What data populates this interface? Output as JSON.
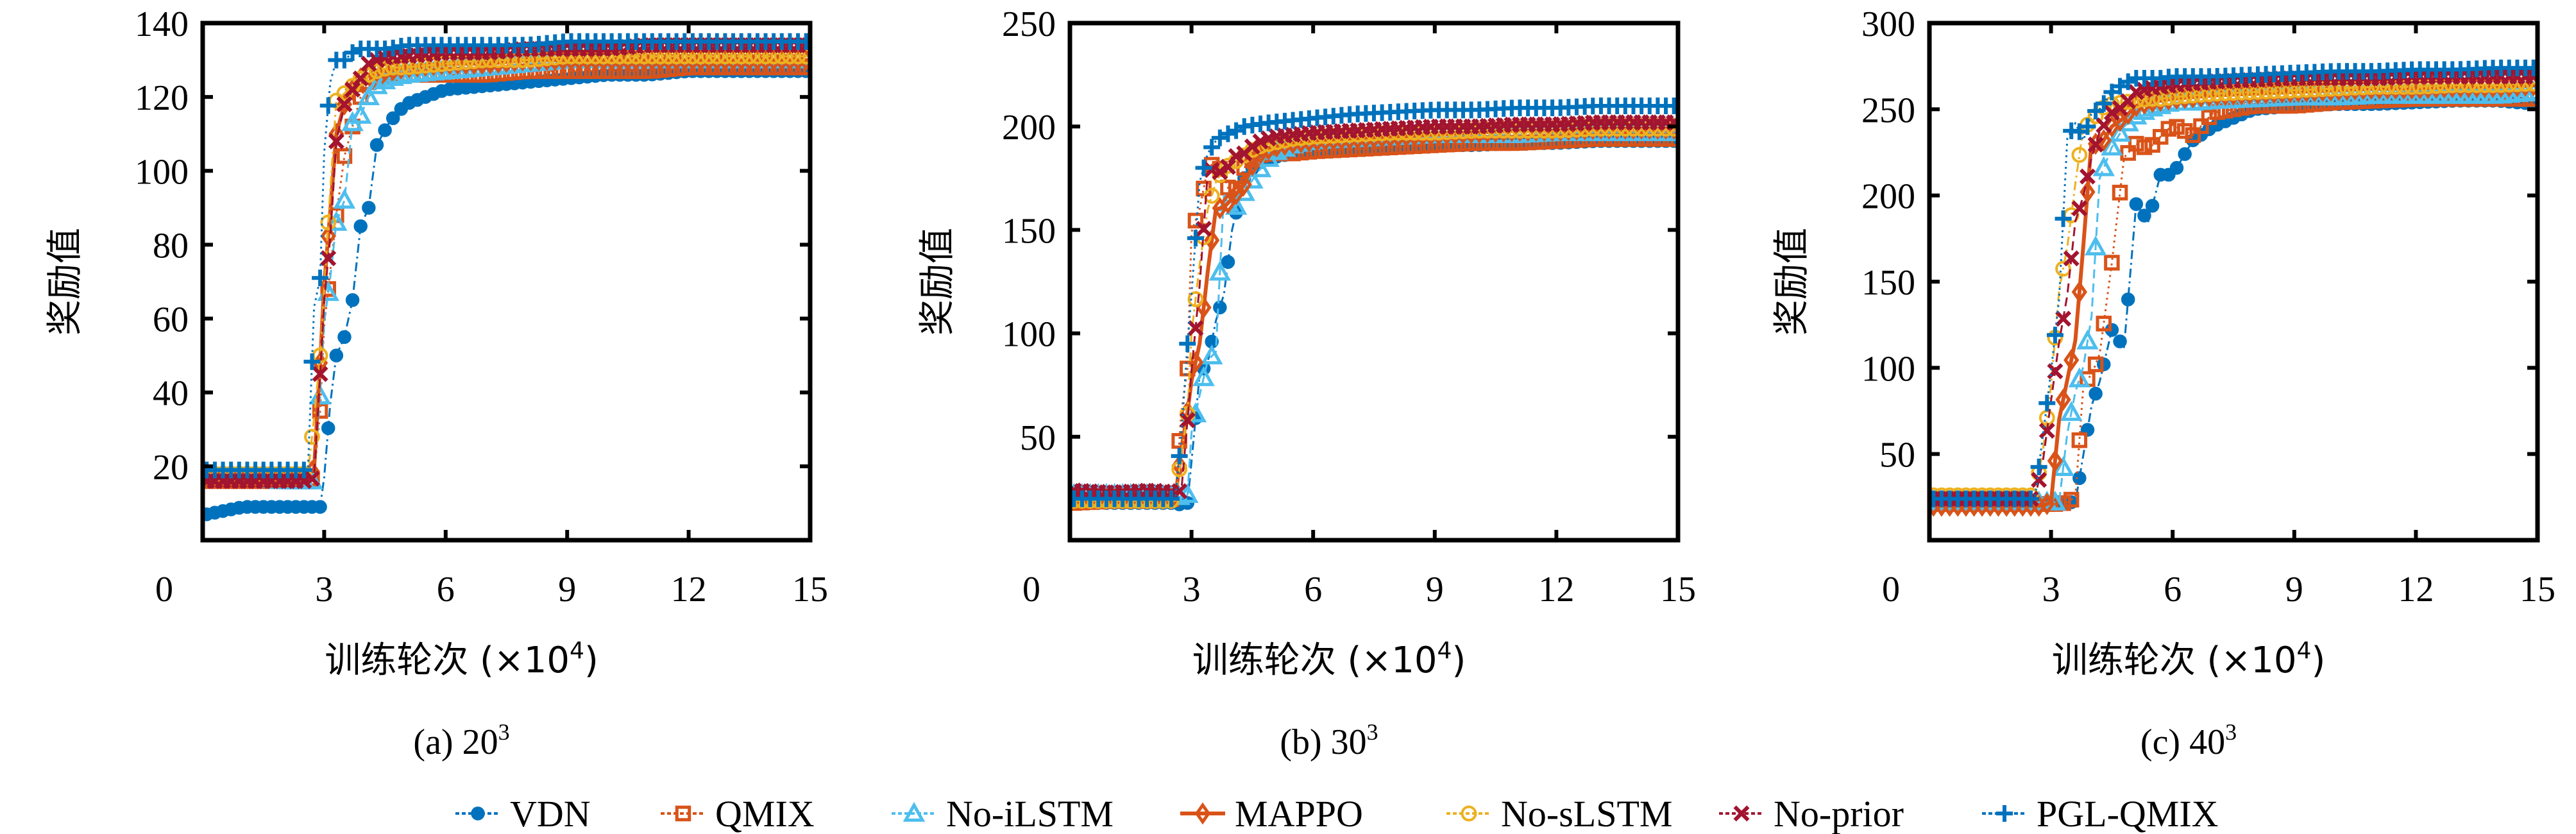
{
  "legend": [
    {
      "name": "VDN",
      "color": "#0072BD",
      "marker": "asterisk-dot",
      "dash": "dashdot"
    },
    {
      "name": "QMIX",
      "color": "#D95319",
      "marker": "square",
      "dash": "dotted"
    },
    {
      "name": "No-iLSTM",
      "color": "#4DBEEE",
      "marker": "triangle",
      "dash": "dashed"
    },
    {
      "name": "MAPPO",
      "color": "#D95319",
      "marker": "diamond",
      "dash": "solid"
    },
    {
      "name": "No-sLSTM",
      "color": "#EDB120",
      "marker": "circle",
      "dash": "dashdot"
    },
    {
      "name": "No-prior",
      "color": "#A2142F",
      "marker": "x-cross",
      "dash": "dashed"
    },
    {
      "name": "PGL-QMIX",
      "color": "#0072BD",
      "marker": "plus",
      "dash": "dotted"
    }
  ],
  "chart_data": [
    {
      "type": "line",
      "caption": "(a) 20",
      "caption_sup": "3",
      "xlabel": "训练轮次 (×10",
      "xlabel_sup": "4",
      "xlabel_end": ")",
      "ylabel": "奖励值",
      "xlim": [
        0,
        15
      ],
      "ylim": [
        0,
        140
      ],
      "xticks": [
        0,
        3,
        6,
        9,
        12,
        15
      ],
      "yticks": [
        20,
        40,
        60,
        80,
        100,
        120,
        140
      ],
      "grid": false,
      "x": [
        0.1,
        1,
        2,
        2.6,
        2.75,
        2.9,
        3.0,
        3.15,
        3.3,
        3.5,
        3.7,
        3.9,
        4.1,
        4.3,
        4.6,
        5,
        6,
        7,
        8,
        9,
        10,
        11,
        12,
        13,
        14,
        15
      ],
      "series": [
        {
          "name": "VDN",
          "values": [
            7,
            9,
            9,
            9,
            9,
            9,
            17,
            37,
            50,
            55,
            65,
            85,
            90,
            107,
            113,
            118,
            122,
            123,
            124,
            125,
            126,
            126,
            127,
            127,
            127,
            127
          ]
        },
        {
          "name": "QMIX",
          "values": [
            16,
            16,
            16,
            16,
            17,
            35,
            58,
            73,
            88,
            104,
            112,
            120,
            124,
            125,
            126,
            126,
            126,
            126,
            127,
            127,
            127,
            127,
            128,
            128,
            128,
            128
          ]
        },
        {
          "name": "No-iLSTM",
          "values": [
            17,
            17,
            16,
            16,
            16,
            39,
            59,
            71,
            86,
            92,
            113,
            115,
            120,
            123,
            125,
            126,
            127,
            128,
            129,
            130,
            130,
            130,
            130,
            130,
            130,
            130
          ]
        },
        {
          "name": "MAPPO",
          "values": [
            17,
            17,
            17,
            18,
            19,
            48,
            69,
            89,
            110,
            118,
            122,
            125,
            126,
            127,
            127,
            128,
            129,
            129,
            130,
            130,
            130,
            130,
            130,
            130,
            130,
            130
          ]
        },
        {
          "name": "No-sLSTM",
          "values": [
            18,
            18,
            18,
            18,
            33,
            50,
            68,
            95,
            119,
            121,
            123,
            125,
            126,
            127,
            128,
            128,
            129,
            130,
            130,
            131,
            131,
            131,
            131,
            131,
            131,
            131
          ]
        },
        {
          "name": "No-prior",
          "values": [
            16,
            16,
            16,
            16,
            17,
            45,
            65,
            82,
            108,
            118,
            122,
            125,
            129,
            130,
            131,
            131,
            132,
            132,
            133,
            133,
            133,
            134,
            134,
            134,
            134,
            134
          ]
        },
        {
          "name": "PGL-QMIX",
          "values": [
            19,
            19,
            19,
            19,
            63,
            71,
            105,
            124,
            130,
            130,
            132,
            133,
            133,
            133,
            133,
            134,
            134,
            134,
            134,
            135,
            135,
            135,
            135,
            135,
            135,
            135
          ]
        }
      ]
    },
    {
      "type": "line",
      "caption": "(b) 30",
      "caption_sup": "3",
      "xlabel": "训练轮次 (×10",
      "xlabel_sup": "4",
      "xlabel_end": ")",
      "ylabel": "奖励值",
      "xlim": [
        0,
        15
      ],
      "ylim": [
        0,
        250
      ],
      "xticks": [
        0,
        3,
        6,
        9,
        12,
        15
      ],
      "yticks": [
        50,
        100,
        150,
        200,
        250
      ],
      "grid": false,
      "x": [
        0.1,
        1,
        2,
        2.6,
        2.75,
        2.9,
        3.0,
        3.2,
        3.4,
        3.6,
        3.8,
        4.0,
        4.3,
        4.6,
        5,
        5.5,
        6,
        7,
        8,
        9,
        10,
        11,
        12,
        13,
        14,
        15
      ],
      "series": [
        {
          "name": "VDN",
          "values": [
            18,
            18,
            18,
            18,
            17,
            18,
            38,
            80,
            86,
            106,
            119,
            150,
            175,
            182,
            185,
            187,
            188,
            189,
            190,
            191,
            191,
            192,
            192,
            193,
            193,
            193
          ]
        },
        {
          "name": "QMIX",
          "values": [
            18,
            19,
            19,
            20,
            62,
            83,
            149,
            160,
            180,
            183,
            176,
            165,
            180,
            186,
            187,
            187,
            188,
            189,
            190,
            191,
            192,
            192,
            193,
            194,
            194,
            194
          ]
        },
        {
          "name": "No-iLSTM",
          "values": [
            22,
            22,
            22,
            21,
            21,
            22,
            52,
            70,
            87,
            91,
            168,
            158,
            168,
            177,
            187,
            191,
            193,
            194,
            195,
            196,
            196,
            196,
            197,
            197,
            197,
            197
          ]
        },
        {
          "name": "MAPPO",
          "values": [
            20,
            20,
            20,
            20,
            44,
            62,
            77,
            95,
            130,
            160,
            161,
            165,
            172,
            186,
            190,
            192,
            193,
            194,
            195,
            196,
            197,
            198,
            198,
            199,
            199,
            199
          ]
        },
        {
          "name": "No-sLSTM",
          "values": [
            19,
            19,
            19,
            19,
            42,
            61,
            100,
            133,
            160,
            173,
            180,
            182,
            186,
            190,
            192,
            194,
            195,
            196,
            197,
            197,
            198,
            198,
            198,
            199,
            199,
            199
          ]
        },
        {
          "name": "No-prior",
          "values": [
            24,
            23,
            24,
            23,
            24,
            58,
            82,
            123,
            178,
            180,
            176,
            185,
            187,
            192,
            195,
            196,
            197,
            198,
            199,
            200,
            200,
            201,
            201,
            202,
            202,
            202
          ]
        },
        {
          "name": "PGL-QMIX",
          "values": [
            20,
            20,
            20,
            20,
            51,
            95,
            119,
            173,
            187,
            193,
            196,
            197,
            200,
            201,
            202,
            203,
            204,
            206,
            207,
            208,
            208,
            209,
            209,
            210,
            210,
            210
          ]
        }
      ]
    },
    {
      "type": "line",
      "caption": "(c) 40",
      "caption_sup": "3",
      "xlabel": "训练轮次 (×10",
      "xlabel_sup": "4",
      "xlabel_end": ")",
      "ylabel": "奖励值",
      "xlim": [
        0,
        15
      ],
      "ylim": [
        0,
        300
      ],
      "xticks": [
        0,
        3,
        6,
        9,
        12,
        15
      ],
      "yticks": [
        50,
        100,
        150,
        200,
        250,
        300
      ],
      "grid": false,
      "x": [
        0.1,
        1,
        2,
        2.6,
        2.8,
        3.0,
        3.2,
        3.4,
        3.6,
        3.8,
        4.0,
        4.2,
        4.5,
        4.8,
        5.1,
        5.4,
        5.7,
        6.0,
        6.5,
        7,
        8,
        9,
        10,
        11,
        12,
        13,
        14,
        15
      ],
      "series": [
        {
          "name": "VDN",
          "values": [
            22,
            22,
            22,
            22,
            22,
            22,
            22,
            22,
            22,
            50,
            78,
            92,
            122,
            112,
            195,
            185,
            212,
            212,
            232,
            240,
            250,
            252,
            253,
            253,
            254,
            255,
            255,
            253
          ]
        },
        {
          "name": "QMIX",
          "values": [
            21,
            21,
            21,
            21,
            21,
            21,
            21,
            22,
            25,
            91,
            96,
            108,
            161,
            222,
            230,
            227,
            234,
            241,
            235,
            248,
            252,
            252,
            254,
            255,
            256,
            256,
            256,
            256
          ]
        },
        {
          "name": "No-iLSTM",
          "values": [
            22,
            22,
            22,
            22,
            22,
            22,
            22,
            62,
            86,
            101,
            130,
            210,
            228,
            240,
            246,
            250,
            252,
            254,
            254,
            255,
            256,
            257,
            257,
            258,
            258,
            258,
            258,
            260
          ]
        },
        {
          "name": "MAPPO",
          "values": [
            20,
            20,
            20,
            20,
            20,
            22,
            70,
            93,
            116,
            172,
            232,
            228,
            240,
            245,
            252,
            254,
            255,
            256,
            257,
            258,
            259,
            260,
            261,
            262,
            262,
            263,
            263,
            264
          ]
        },
        {
          "name": "No-sLSTM",
          "values": [
            26,
            26,
            26,
            26,
            52,
            90,
            145,
            170,
            207,
            240,
            242,
            250,
            253,
            254,
            255,
            256,
            256,
            257,
            258,
            259,
            260,
            261,
            262,
            263,
            263,
            264,
            264,
            265
          ]
        },
        {
          "name": "No-prior",
          "values": [
            24,
            24,
            24,
            24,
            46,
            81,
            115,
            142,
            185,
            200,
            222,
            237,
            248,
            252,
            260,
            262,
            263,
            264,
            265,
            266,
            267,
            268,
            268,
            268,
            269,
            269,
            269,
            269
          ]
        },
        {
          "name": "PGL-QMIX",
          "values": [
            24,
            24,
            24,
            24,
            61,
            98,
            140,
            233,
            242,
            232,
            248,
            250,
            260,
            265,
            268,
            268,
            268,
            269,
            269,
            269,
            270,
            271,
            272,
            272,
            273,
            273,
            274,
            274
          ]
        }
      ]
    }
  ]
}
